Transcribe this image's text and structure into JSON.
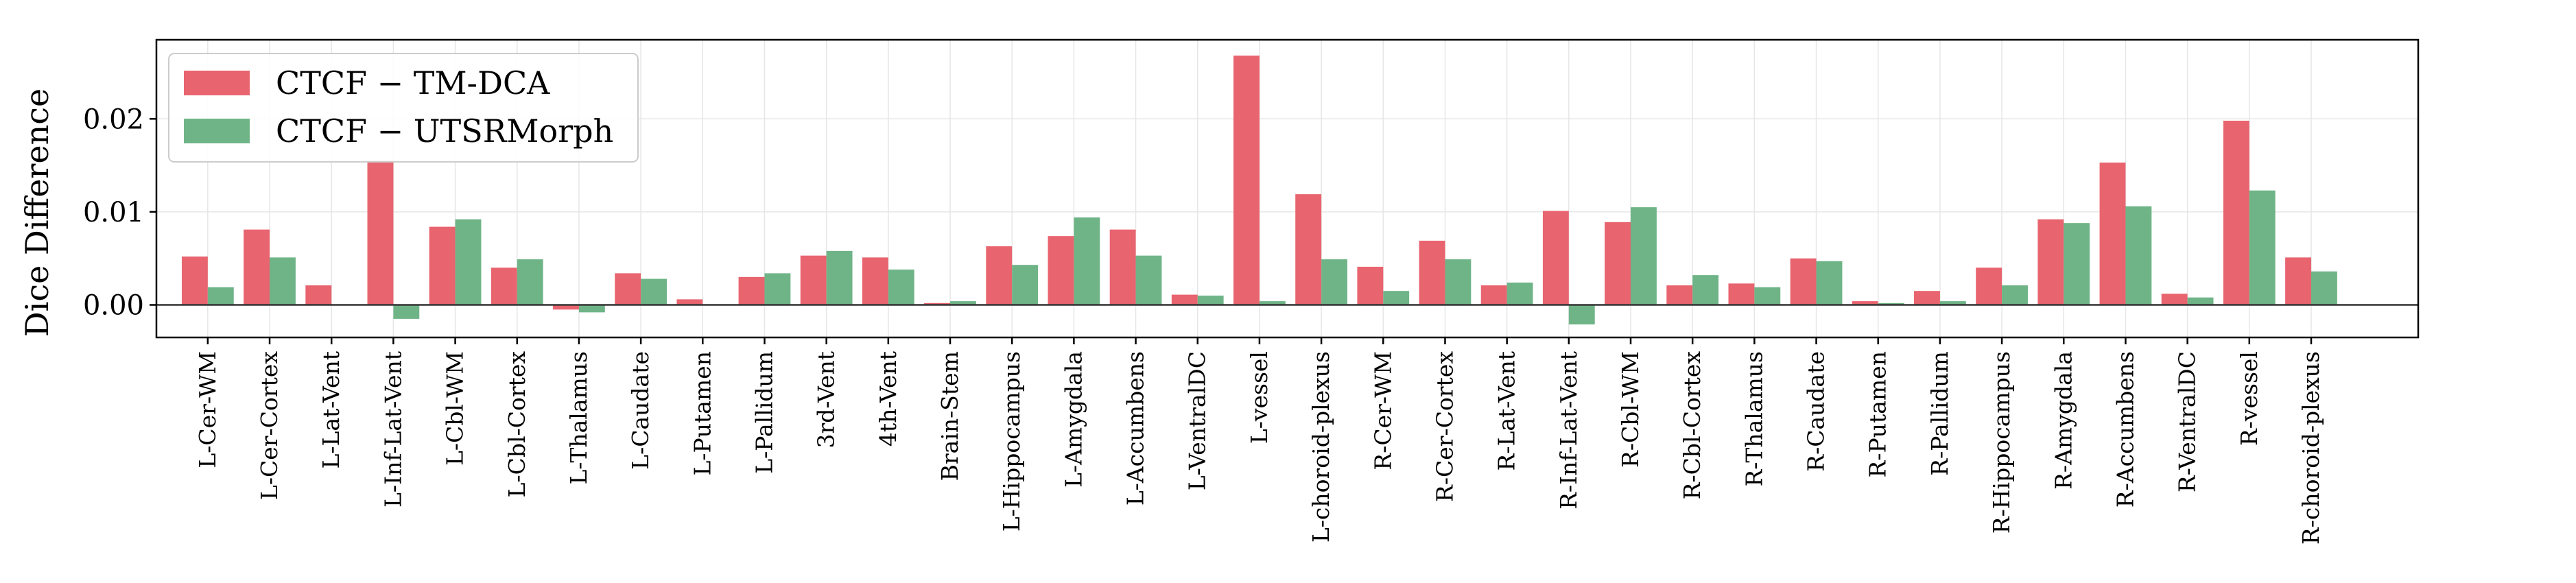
{
  "chart_data": {
    "type": "bar",
    "title": "",
    "xlabel": "",
    "ylabel": "Dice Difference",
    "ylim": [
      -0.0035,
      0.0285
    ],
    "yticks": [
      0.0,
      0.01,
      0.02
    ],
    "ytick_labels": [
      "0.00",
      "0.01",
      "0.02"
    ],
    "grid": true,
    "legend_position": "top-left",
    "categories": [
      "L-Cer-WM",
      "L-Cer-Cortex",
      "L-Lat-Vent",
      "L-Inf-Lat-Vent",
      "L-Cbl-WM",
      "L-Cbl-Cortex",
      "L-Thalamus",
      "L-Caudate",
      "L-Putamen",
      "L-Pallidum",
      "3rd-Vent",
      "4th-Vent",
      "Brain-Stem",
      "L-Hippocampus",
      "L-Amygdala",
      "L-Accumbens",
      "L-VentralDC",
      "L-vessel",
      "L-choroid-plexus",
      "R-Cer-WM",
      "R-Cer-Cortex",
      "R-Lat-Vent",
      "R-Inf-Lat-Vent",
      "R-Cbl-WM",
      "R-Cbl-Cortex",
      "R-Thalamus",
      "R-Caudate",
      "R-Putamen",
      "R-Pallidum",
      "R-Hippocampus",
      "R-Amygdala",
      "R-Accumbens",
      "R-VentralDC",
      "R-vessel",
      "R-choroid-plexus"
    ],
    "series": [
      {
        "name": "CTCF − TM-DCA",
        "color": "#e8646f",
        "values": [
          0.0052,
          0.0081,
          0.0021,
          0.0155,
          0.0084,
          0.004,
          -0.0005,
          0.0034,
          0.0006,
          0.003,
          0.0053,
          0.0051,
          0.0002,
          0.0063,
          0.0074,
          0.0081,
          0.0011,
          0.0268,
          0.0119,
          0.0041,
          0.0069,
          0.0021,
          0.0101,
          0.0089,
          0.0021,
          0.0023,
          0.005,
          0.0004,
          0.0015,
          0.004,
          0.0092,
          0.0153,
          0.0012,
          0.0198,
          0.0051
        ]
      },
      {
        "name": "CTCF − UTSRMorph",
        "color": "#6fb487",
        "values": [
          0.0019,
          0.0051,
          0.0,
          -0.0015,
          0.0092,
          0.0049,
          -0.0008,
          0.0028,
          0.0,
          0.0034,
          0.0058,
          0.0038,
          0.0004,
          0.0043,
          0.0094,
          0.0053,
          0.001,
          0.0004,
          0.0049,
          0.0015,
          0.0049,
          0.0024,
          -0.0021,
          0.0105,
          0.0032,
          0.0019,
          0.0047,
          0.0002,
          0.0004,
          0.0021,
          0.0088,
          0.0106,
          0.0008,
          0.0123,
          0.0036
        ]
      }
    ]
  }
}
